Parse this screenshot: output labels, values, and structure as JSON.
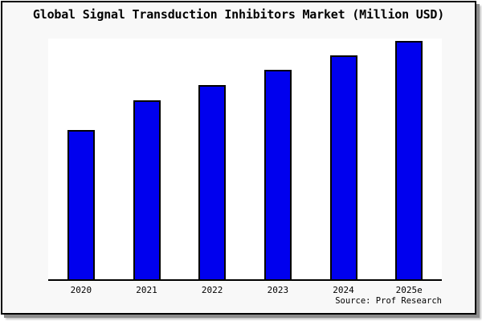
{
  "source": "Source: Prof Research",
  "colors": {
    "bar_fill": "#0000EE",
    "bar_border": "#000000",
    "figure_background": "#F8F8F8",
    "plot_background": "#FFFFFF",
    "frame_border": "#000000",
    "shadow": "#8C8C8C",
    "text": "#000000"
  },
  "chart_data": {
    "type": "bar",
    "title": "Global Signal Transduction Inhibitors Market (Million USD)",
    "categories": [
      "2020",
      "2021",
      "2022",
      "2023",
      "2024",
      "2025e"
    ],
    "values": [
      188,
      225,
      244,
      263,
      281,
      299
    ],
    "value_units": "relative px height (y-axis unlabeled in image)",
    "xlabel": "",
    "ylabel": "",
    "ylim": [
      0,
      302
    ],
    "grid": false,
    "legend": false,
    "y_axis_ticks_visible": false,
    "annotations": [
      "Source: Prof Research"
    ]
  }
}
